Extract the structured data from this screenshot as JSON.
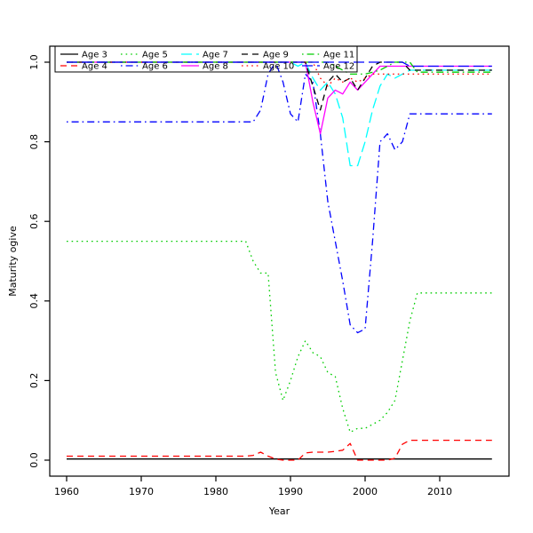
{
  "figure": {
    "xlabel": "Year",
    "ylabel": "Maturity ogive"
  },
  "chart_data": {
    "type": "line",
    "title": "",
    "xlabel": "Year",
    "ylabel": "Maturity ogive",
    "xlim": [
      1957.7,
      2019.3
    ],
    "ylim": [
      -0.04,
      1.04
    ],
    "x_ticks": [
      1960,
      1970,
      1980,
      1990,
      2000,
      2010
    ],
    "y_ticks": [
      0.0,
      0.2,
      0.4,
      0.6,
      0.8,
      1.0
    ],
    "grid": false,
    "legend_position": "top-left",
    "legend_columns": 5,
    "legend_order": [
      [
        "Age 3",
        "Age 5",
        "Age 7",
        "Age 9",
        "Age 11"
      ],
      [
        "Age 4",
        "Age 6",
        "Age 8",
        "Age 10",
        "Age 12"
      ]
    ],
    "series": [
      {
        "name": "Age 3",
        "color": "#000000",
        "linestyle": "solid",
        "points": [
          [
            1960,
            0.003
          ],
          [
            2017,
            0.003
          ]
        ]
      },
      {
        "name": "Age 4",
        "color": "#ff0000",
        "linestyle": "dashed",
        "points": [
          [
            1960,
            0.01
          ],
          [
            1984,
            0.01
          ],
          [
            1985,
            0.012
          ],
          [
            1986,
            0.02
          ],
          [
            1987,
            0.01
          ],
          [
            1988,
            0.003
          ],
          [
            1989,
            0.0
          ],
          [
            1991,
            0.0
          ],
          [
            1992,
            0.018
          ],
          [
            1993,
            0.02
          ],
          [
            1995,
            0.02
          ],
          [
            1996,
            0.022
          ],
          [
            1997,
            0.025
          ],
          [
            1998,
            0.042
          ],
          [
            1999,
            0.0
          ],
          [
            2003,
            0.0
          ],
          [
            2004,
            0.005
          ],
          [
            2005,
            0.04
          ],
          [
            2006,
            0.05
          ],
          [
            2017,
            0.05
          ]
        ]
      },
      {
        "name": "Age 5",
        "color": "#00cd00",
        "linestyle": "dotted",
        "points": [
          [
            1960,
            0.55
          ],
          [
            1984,
            0.55
          ],
          [
            1985,
            0.5
          ],
          [
            1986,
            0.47
          ],
          [
            1987,
            0.47
          ],
          [
            1988,
            0.22
          ],
          [
            1989,
            0.15
          ],
          [
            1990,
            0.2
          ],
          [
            1991,
            0.26
          ],
          [
            1992,
            0.3
          ],
          [
            1993,
            0.27
          ],
          [
            1994,
            0.26
          ],
          [
            1995,
            0.22
          ],
          [
            1996,
            0.21
          ],
          [
            1997,
            0.13
          ],
          [
            1998,
            0.07
          ],
          [
            1999,
            0.08
          ],
          [
            2000,
            0.08
          ],
          [
            2001,
            0.09
          ],
          [
            2002,
            0.1
          ],
          [
            2003,
            0.12
          ],
          [
            2004,
            0.15
          ],
          [
            2005,
            0.25
          ],
          [
            2006,
            0.35
          ],
          [
            2007,
            0.42
          ],
          [
            2017,
            0.42
          ]
        ]
      },
      {
        "name": "Age 6",
        "color": "#0000ff",
        "linestyle": "dotdash",
        "points": [
          [
            1960,
            0.85
          ],
          [
            1984,
            0.85
          ],
          [
            1985,
            0.85
          ],
          [
            1986,
            0.88
          ],
          [
            1987,
            0.97
          ],
          [
            1988,
            1.0
          ],
          [
            1989,
            0.95
          ],
          [
            1990,
            0.87
          ],
          [
            1991,
            0.85
          ],
          [
            1992,
            0.97
          ],
          [
            1993,
            0.95
          ],
          [
            1994,
            0.82
          ],
          [
            1995,
            0.65
          ],
          [
            1996,
            0.55
          ],
          [
            1997,
            0.45
          ],
          [
            1998,
            0.34
          ],
          [
            1999,
            0.32
          ],
          [
            2000,
            0.33
          ],
          [
            2001,
            0.55
          ],
          [
            2002,
            0.8
          ],
          [
            2003,
            0.82
          ],
          [
            2004,
            0.78
          ],
          [
            2005,
            0.8
          ],
          [
            2006,
            0.87
          ],
          [
            2017,
            0.87
          ]
        ]
      },
      {
        "name": "Age 7",
        "color": "#00ffff",
        "linestyle": "longdash",
        "points": [
          [
            1960,
            1.0
          ],
          [
            1990,
            1.0
          ],
          [
            1991,
            0.99
          ],
          [
            1992,
            1.0
          ],
          [
            1993,
            0.96
          ],
          [
            1994,
            0.93
          ],
          [
            1995,
            0.95
          ],
          [
            1996,
            0.92
          ],
          [
            1997,
            0.86
          ],
          [
            1998,
            0.74
          ],
          [
            1999,
            0.74
          ],
          [
            2000,
            0.8
          ],
          [
            2001,
            0.88
          ],
          [
            2002,
            0.94
          ],
          [
            2003,
            0.97
          ],
          [
            2004,
            0.96
          ],
          [
            2005,
            0.97
          ],
          [
            2006,
            0.98
          ],
          [
            2017,
            0.98
          ]
        ]
      },
      {
        "name": "Age 8",
        "color": "#ff00ff",
        "linestyle": "solid",
        "points": [
          [
            1960,
            1.0
          ],
          [
            1992,
            1.0
          ],
          [
            1993,
            0.9
          ],
          [
            1994,
            0.82
          ],
          [
            1995,
            0.91
          ],
          [
            1996,
            0.93
          ],
          [
            1997,
            0.92
          ],
          [
            1998,
            0.95
          ],
          [
            1999,
            0.93
          ],
          [
            2000,
            0.95
          ],
          [
            2001,
            0.97
          ],
          [
            2002,
            0.99
          ],
          [
            2017,
            0.99
          ]
        ]
      },
      {
        "name": "Age 9",
        "color": "#000000",
        "linestyle": "dashed",
        "points": [
          [
            1960,
            1.0
          ],
          [
            1992,
            1.0
          ],
          [
            1993,
            0.94
          ],
          [
            1994,
            0.88
          ],
          [
            1995,
            0.95
          ],
          [
            1996,
            0.97
          ],
          [
            1997,
            0.95
          ],
          [
            1998,
            0.96
          ],
          [
            1999,
            0.93
          ],
          [
            2000,
            0.96
          ],
          [
            2001,
            0.99
          ],
          [
            2002,
            1.0
          ],
          [
            2005,
            1.0
          ],
          [
            2006,
            0.98
          ],
          [
            2017,
            0.98
          ]
        ]
      },
      {
        "name": "Age 10",
        "color": "#ff0000",
        "linestyle": "dotted",
        "points": [
          [
            1960,
            1.0
          ],
          [
            1993,
            1.0
          ],
          [
            1994,
            0.96
          ],
          [
            1995,
            0.94
          ],
          [
            1996,
            0.96
          ],
          [
            1997,
            0.95
          ],
          [
            1998,
            0.96
          ],
          [
            1999,
            0.95
          ],
          [
            2000,
            0.96
          ],
          [
            2001,
            0.97
          ],
          [
            2002,
            0.97
          ],
          [
            2006,
            0.97
          ],
          [
            2017,
            0.97
          ]
        ]
      },
      {
        "name": "Age 11",
        "color": "#00cd00",
        "linestyle": "dotdash",
        "points": [
          [
            1960,
            1.0
          ],
          [
            1995,
            1.0
          ],
          [
            1996,
            0.99
          ],
          [
            1997,
            0.98
          ],
          [
            1998,
            0.97
          ],
          [
            2000,
            0.97
          ],
          [
            2002,
            0.98
          ],
          [
            2004,
            1.0
          ],
          [
            2006,
            1.0
          ],
          [
            2007,
            0.975
          ],
          [
            2017,
            0.975
          ]
        ]
      },
      {
        "name": "Age 12",
        "color": "#0000ff",
        "linestyle": "longdash",
        "points": [
          [
            1960,
            1.0
          ],
          [
            2005,
            1.0
          ],
          [
            2006,
            0.99
          ],
          [
            2017,
            0.99
          ]
        ]
      }
    ]
  }
}
